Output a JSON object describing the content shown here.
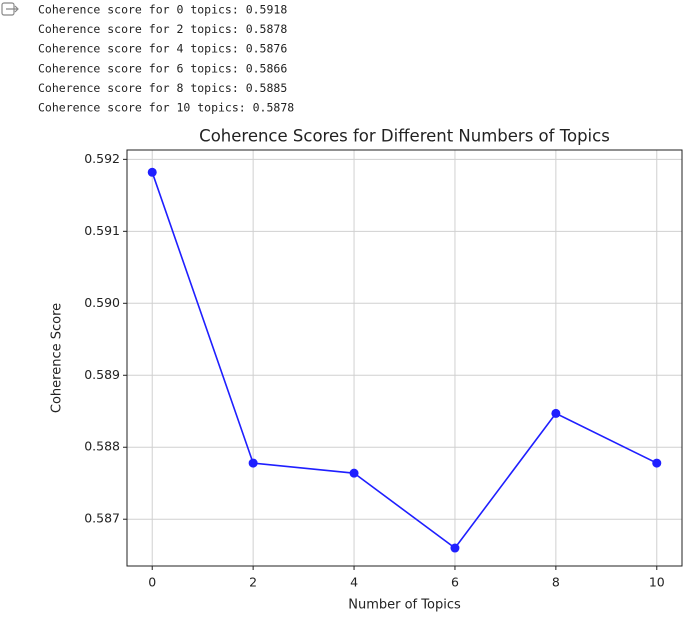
{
  "output_lines": [
    "Coherence score for 0 topics: 0.5918",
    "Coherence score for 2 topics: 0.5878",
    "Coherence score for 4 topics: 0.5876",
    "Coherence score for 6 topics: 0.5866",
    "Coherence score for 8 topics: 0.5885",
    "Coherence score for 10 topics: 0.5878"
  ],
  "chart_data": {
    "type": "line",
    "title": "Coherence Scores for Different Numbers of Topics",
    "x_label": "Number of Topics",
    "y_label": "Coherence Score",
    "x": [
      0,
      2,
      4,
      6,
      8,
      10
    ],
    "series": [
      {
        "name": "Coherence Score",
        "color": "#1f1fff",
        "values": [
          0.59182,
          0.58778,
          0.58764,
          0.5866,
          0.58847,
          0.58778
        ]
      }
    ],
    "xlim": [
      -0.5,
      10.5
    ],
    "xticks": [
      0,
      2,
      4,
      6,
      8,
      10
    ],
    "ylim": [
      0.58635,
      0.59213
    ],
    "yticks": [
      0.587,
      0.588,
      0.589,
      {
        "value": 0.59,
        "label": "0.590"
      },
      0.591,
      0.592
    ],
    "grid": true,
    "marker": "circle"
  }
}
